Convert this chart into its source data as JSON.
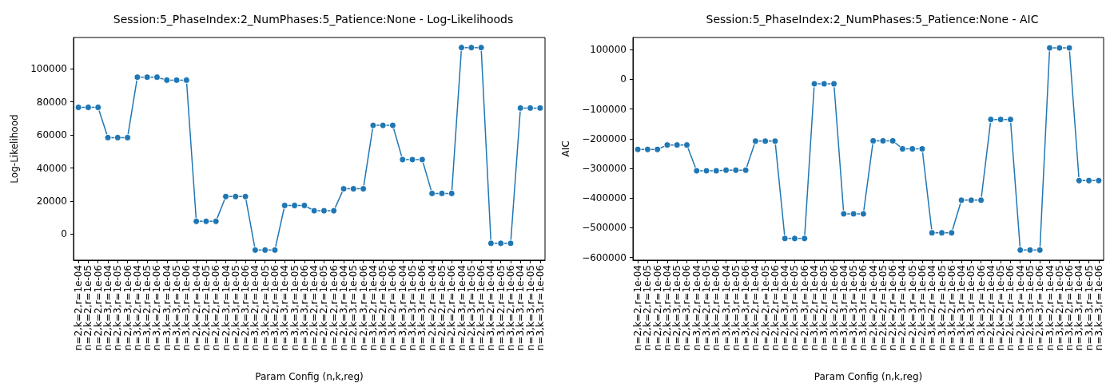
{
  "chart_data": [
    {
      "type": "line",
      "title": "Session:5_PhaseIndex:2_NumPhases:5_Patience:None - Log-Likelihoods",
      "xlabel": "Param Config (n,k,reg)",
      "ylabel": "Log-Likelihood",
      "categories": [
        "n=2,k=2,r=1e-04",
        "n=2,k=2,r=1e-05",
        "n=2,k=2,r=1e-06",
        "n=2,k=3,r=1e-04",
        "n=2,k=3,r=1e-05",
        "n=2,k=3,r=1e-06",
        "n=3,k=2,r=1e-04",
        "n=3,k=2,r=1e-05",
        "n=3,k=2,r=1e-06",
        "n=3,k=3,r=1e-04",
        "n=3,k=3,r=1e-05",
        "n=3,k=3,r=1e-06",
        "n=2,k=2,r=1e-04",
        "n=2,k=2,r=1e-05",
        "n=2,k=2,r=1e-06",
        "n=2,k=3,r=1e-04",
        "n=2,k=3,r=1e-05",
        "n=2,k=3,r=1e-06",
        "n=3,k=2,r=1e-04",
        "n=3,k=2,r=1e-05",
        "n=3,k=2,r=1e-06",
        "n=3,k=3,r=1e-04",
        "n=3,k=3,r=1e-05",
        "n=3,k=3,r=1e-06",
        "n=2,k=2,r=1e-04",
        "n=2,k=2,r=1e-05",
        "n=2,k=2,r=1e-06",
        "n=2,k=3,r=1e-04",
        "n=2,k=3,r=1e-05",
        "n=2,k=3,r=1e-06",
        "n=3,k=2,r=1e-04",
        "n=3,k=2,r=1e-05",
        "n=3,k=2,r=1e-06",
        "n=3,k=3,r=1e-04",
        "n=3,k=3,r=1e-05",
        "n=3,k=3,r=1e-06",
        "n=2,k=2,r=1e-04",
        "n=2,k=2,r=1e-05",
        "n=2,k=2,r=1e-06",
        "n=2,k=3,r=1e-04",
        "n=2,k=3,r=1e-05",
        "n=2,k=3,r=1e-06",
        "n=3,k=2,r=1e-04",
        "n=3,k=2,r=1e-05",
        "n=3,k=2,r=1e-06",
        "n=3,k=3,r=1e-04",
        "n=3,k=3,r=1e-05",
        "n=3,k=3,r=1e-06"
      ],
      "series": [
        {
          "color": "#1f77b4",
          "values": [
            76700,
            76700,
            76700,
            58400,
            58400,
            58400,
            95000,
            95000,
            95000,
            93200,
            93200,
            93200,
            7700,
            7700,
            7700,
            22700,
            22700,
            22700,
            -9700,
            -9700,
            -9700,
            17300,
            17300,
            17300,
            14100,
            14100,
            14100,
            27400,
            27400,
            27400,
            65800,
            65800,
            65800,
            45100,
            45100,
            45100,
            24600,
            24600,
            24600,
            112900,
            112900,
            112900,
            -5600,
            -5600,
            -5600,
            76300,
            76300,
            76300
          ]
        }
      ],
      "ylim": [
        -15800,
        119000
      ],
      "yticks": [
        0,
        20000,
        40000,
        60000,
        80000,
        100000
      ],
      "grid": false,
      "marker": "circle",
      "line_style": "solid"
    },
    {
      "type": "line",
      "title": "Session:5_PhaseIndex:2_NumPhases:5_Patience:None - AIC",
      "xlabel": "Param Config (n,k,reg)",
      "ylabel": "AIC",
      "categories": [
        "n=2,k=2,r=1e-04",
        "n=2,k=2,r=1e-05",
        "n=2,k=2,r=1e-06",
        "n=2,k=3,r=1e-04",
        "n=2,k=3,r=1e-05",
        "n=2,k=3,r=1e-06",
        "n=3,k=2,r=1e-04",
        "n=3,k=2,r=1e-05",
        "n=3,k=2,r=1e-06",
        "n=3,k=3,r=1e-04",
        "n=3,k=3,r=1e-05",
        "n=3,k=3,r=1e-06",
        "n=2,k=2,r=1e-04",
        "n=2,k=2,r=1e-05",
        "n=2,k=2,r=1e-06",
        "n=2,k=3,r=1e-04",
        "n=2,k=3,r=1e-05",
        "n=2,k=3,r=1e-06",
        "n=3,k=2,r=1e-04",
        "n=3,k=2,r=1e-05",
        "n=3,k=2,r=1e-06",
        "n=3,k=3,r=1e-04",
        "n=3,k=3,r=1e-05",
        "n=3,k=3,r=1e-06",
        "n=2,k=2,r=1e-04",
        "n=2,k=2,r=1e-05",
        "n=2,k=2,r=1e-06",
        "n=2,k=3,r=1e-04",
        "n=2,k=3,r=1e-05",
        "n=2,k=3,r=1e-06",
        "n=3,k=2,r=1e-04",
        "n=3,k=2,r=1e-05",
        "n=3,k=2,r=1e-06",
        "n=3,k=3,r=1e-04",
        "n=3,k=3,r=1e-05",
        "n=3,k=3,r=1e-06",
        "n=2,k=2,r=1e-04",
        "n=2,k=2,r=1e-05",
        "n=2,k=2,r=1e-06",
        "n=2,k=3,r=1e-04",
        "n=2,k=3,r=1e-05",
        "n=2,k=3,r=1e-06",
        "n=3,k=2,r=1e-04",
        "n=3,k=2,r=1e-05",
        "n=3,k=2,r=1e-06",
        "n=3,k=3,r=1e-04",
        "n=3,k=3,r=1e-05",
        "n=3,k=3,r=1e-06"
      ],
      "series": [
        {
          "color": "#1f77b4",
          "values": [
            -236000,
            -236000,
            -236000,
            -221000,
            -221000,
            -221000,
            -308000,
            -308000,
            -308000,
            -306000,
            -306000,
            -306000,
            -208000,
            -208000,
            -208000,
            -536000,
            -536000,
            -536000,
            -15000,
            -15000,
            -15000,
            -453000,
            -453000,
            -453000,
            -207000,
            -207000,
            -207000,
            -234000,
            -234000,
            -234000,
            -517000,
            -517000,
            -517000,
            -407000,
            -407000,
            -407000,
            -135000,
            -135000,
            -135000,
            -575000,
            -575000,
            -575000,
            106000,
            106000,
            106000,
            -341000,
            -341000,
            -341000
          ]
        }
      ],
      "ylim": [
        -609000,
        141000
      ],
      "yticks": [
        -600000,
        -500000,
        -400000,
        -300000,
        -200000,
        -100000,
        0,
        100000
      ],
      "grid": false,
      "marker": "circle",
      "line_style": "solid"
    }
  ]
}
